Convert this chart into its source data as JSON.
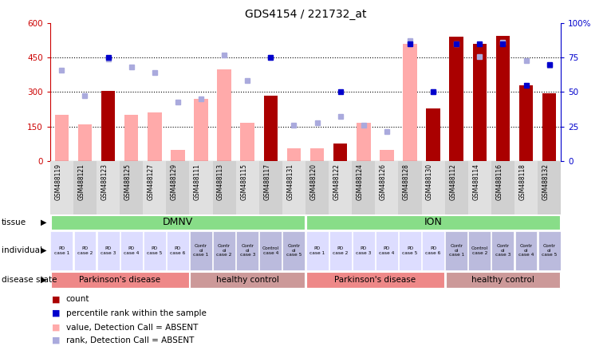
{
  "title": "GDS4154 / 221732_at",
  "samples": [
    "GSM488119",
    "GSM488121",
    "GSM488123",
    "GSM488125",
    "GSM488127",
    "GSM488129",
    "GSM488111",
    "GSM488113",
    "GSM488115",
    "GSM488117",
    "GSM488131",
    "GSM488120",
    "GSM488122",
    "GSM488124",
    "GSM488126",
    "GSM488128",
    "GSM488130",
    "GSM488112",
    "GSM488114",
    "GSM488116",
    "GSM488118",
    "GSM488132"
  ],
  "bar_count_values": [
    0,
    0,
    305,
    0,
    0,
    0,
    0,
    0,
    0,
    285,
    0,
    0,
    75,
    0,
    0,
    0,
    230,
    540,
    510,
    545,
    330,
    295
  ],
  "bar_absent_values": [
    200,
    160,
    0,
    200,
    210,
    50,
    270,
    400,
    165,
    0,
    55,
    55,
    0,
    165,
    50,
    510,
    0,
    0,
    450,
    0,
    0,
    0
  ],
  "dot_rank_values": [
    395,
    285,
    445,
    410,
    385,
    255,
    270,
    460,
    350,
    450,
    155,
    165,
    195,
    155,
    130,
    525,
    300,
    510,
    455,
    515,
    435,
    415
  ],
  "dot_percentile_values": [
    null,
    null,
    75,
    null,
    null,
    null,
    null,
    null,
    null,
    75,
    null,
    null,
    50,
    null,
    null,
    85,
    50,
    85,
    85,
    85,
    55,
    70
  ],
  "tissue_groups": [
    {
      "label": "DMNV",
      "start": 0,
      "end": 10,
      "color": "#88dd88"
    },
    {
      "label": "ION",
      "start": 11,
      "end": 21,
      "color": "#88dd88"
    }
  ],
  "ind_labels_top": [
    "PD",
    "PD",
    "PD",
    "PD",
    "PD",
    "PD",
    "Contr",
    "Contr",
    "Contr",
    "Control",
    "Contr",
    "PD",
    "PD",
    "PD",
    "PD",
    "PD",
    "PD",
    "Contr",
    "Control",
    "Contr",
    "Contr",
    "Contr"
  ],
  "ind_labels_mid": [
    "",
    "",
    "",
    "",
    "",
    "",
    "ol",
    "ol",
    "ol",
    "",
    "ol",
    "",
    "",
    "",
    "",
    "",
    "",
    "ol",
    "",
    "ol",
    "ol",
    "ol"
  ],
  "ind_labels_bot": [
    "case 1",
    "case 2",
    "case 3",
    "case 4",
    "case 5",
    "case 6",
    "case 1",
    "case 2",
    "case 3",
    "case 4",
    "case 5",
    "case 1",
    "case 2",
    "case 3",
    "case 4",
    "case 5",
    "case 6",
    "case 1",
    "case 2",
    "case 3",
    "case 4",
    "case 5"
  ],
  "ind_colors": [
    "#ddddff",
    "#ddddff",
    "#ddddff",
    "#ddddff",
    "#ddddff",
    "#ddddff",
    "#bbbbdd",
    "#bbbbdd",
    "#bbbbdd",
    "#bbbbdd",
    "#bbbbdd",
    "#ddddff",
    "#ddddff",
    "#ddddff",
    "#ddddff",
    "#ddddff",
    "#ddddff",
    "#bbbbdd",
    "#bbbbdd",
    "#bbbbdd",
    "#bbbbdd",
    "#bbbbdd"
  ],
  "disease_groups": [
    {
      "label": "Parkinson's disease",
      "start": 0,
      "end": 5,
      "color": "#ee8888"
    },
    {
      "label": "healthy control",
      "start": 6,
      "end": 10,
      "color": "#cc9999"
    },
    {
      "label": "Parkinson's disease",
      "start": 11,
      "end": 16,
      "color": "#ee8888"
    },
    {
      "label": "healthy control",
      "start": 17,
      "end": 21,
      "color": "#cc9999"
    }
  ],
  "ylim_left": [
    0,
    600
  ],
  "ylim_right": [
    0,
    100
  ],
  "yticks_left": [
    0,
    150,
    300,
    450,
    600
  ],
  "ytick_labels_left": [
    "0",
    "150",
    "300",
    "450",
    "600"
  ],
  "ytick_labels_right": [
    "0",
    "25",
    "50",
    "75",
    "100%"
  ],
  "bar_count_color": "#aa0000",
  "bar_absent_color": "#ffaaaa",
  "dot_rank_color": "#aaaadd",
  "dot_percentile_color": "#0000cc",
  "bg_color": "#ffffff"
}
